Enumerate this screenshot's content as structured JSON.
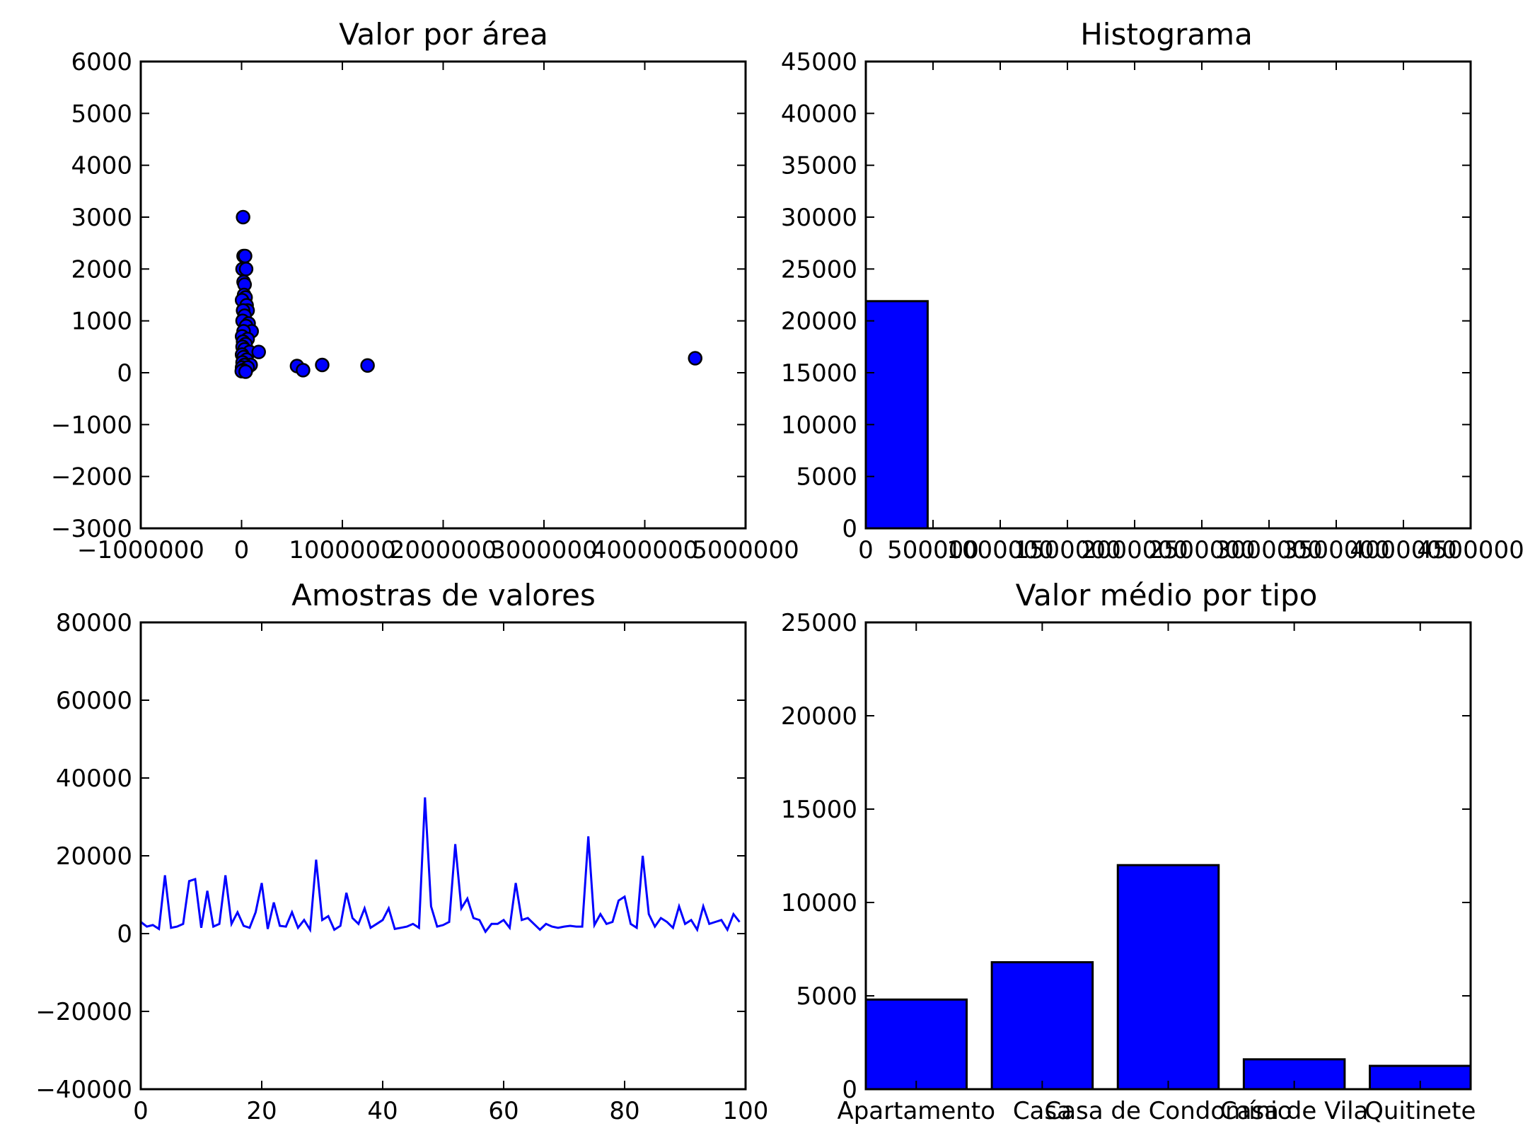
{
  "chart_data": [
    {
      "type": "scatter",
      "title": "Valor por área",
      "xlabel": "",
      "ylabel": "",
      "xlim": [
        -1000000,
        5000000
      ],
      "ylim": [
        -3000,
        6000
      ],
      "xticks": [
        -1000000,
        0,
        1000000,
        2000000,
        3000000,
        4000000,
        5000000
      ],
      "xtick_labels": [
        "−1000000",
        "0",
        "1000000",
        "2000000",
        "3000000",
        "4000000",
        "5000000"
      ],
      "yticks": [
        -3000,
        -2000,
        -1000,
        0,
        1000,
        2000,
        3000,
        4000,
        5000,
        6000
      ],
      "ytick_labels": [
        "−3000",
        "−2000",
        "−1000",
        "0",
        "1000",
        "2000",
        "3000",
        "4000",
        "5000",
        "6000"
      ],
      "color": "#0000ff",
      "grid": false,
      "points": [
        {
          "x": 15000,
          "y": 3000
        },
        {
          "x": 20000,
          "y": 2250
        },
        {
          "x": 35000,
          "y": 2250
        },
        {
          "x": 10000,
          "y": 2000
        },
        {
          "x": 45000,
          "y": 2000
        },
        {
          "x": 20000,
          "y": 1750
        },
        {
          "x": 30000,
          "y": 1700
        },
        {
          "x": 25000,
          "y": 1500
        },
        {
          "x": 40000,
          "y": 1450
        },
        {
          "x": 5000,
          "y": 1400
        },
        {
          "x": 50000,
          "y": 1300
        },
        {
          "x": 60000,
          "y": 1200
        },
        {
          "x": 15000,
          "y": 1200
        },
        {
          "x": 30000,
          "y": 1100
        },
        {
          "x": 10000,
          "y": 1000
        },
        {
          "x": 70000,
          "y": 950
        },
        {
          "x": 45000,
          "y": 900
        },
        {
          "x": 100000,
          "y": 800
        },
        {
          "x": 20000,
          "y": 800
        },
        {
          "x": 5000,
          "y": 700
        },
        {
          "x": 60000,
          "y": 650
        },
        {
          "x": 15000,
          "y": 600
        },
        {
          "x": 40000,
          "y": 550
        },
        {
          "x": 10000,
          "y": 500
        },
        {
          "x": 30000,
          "y": 450
        },
        {
          "x": 80000,
          "y": 400
        },
        {
          "x": 170000,
          "y": 400
        },
        {
          "x": 5000,
          "y": 350
        },
        {
          "x": 20000,
          "y": 300
        },
        {
          "x": 50000,
          "y": 250
        },
        {
          "x": 10000,
          "y": 200
        },
        {
          "x": 90000,
          "y": 150
        },
        {
          "x": 30000,
          "y": 150
        },
        {
          "x": 5000,
          "y": 100
        },
        {
          "x": 60000,
          "y": 100
        },
        {
          "x": 15000,
          "y": 50
        },
        {
          "x": 2000,
          "y": 30
        },
        {
          "x": 40000,
          "y": 20
        },
        {
          "x": 550000,
          "y": 130
        },
        {
          "x": 610000,
          "y": 50
        },
        {
          "x": 800000,
          "y": 150
        },
        {
          "x": 1250000,
          "y": 140
        },
        {
          "x": 4500000,
          "y": 280
        }
      ]
    },
    {
      "type": "bar",
      "title": "Histograma",
      "xlabel": "",
      "ylabel": "",
      "xlim": [
        0,
        4500000
      ],
      "ylim": [
        0,
        45000
      ],
      "xticks": [
        0,
        500000,
        1000000,
        1500000,
        2000000,
        2500000,
        3000000,
        3500000,
        4000000,
        4500000
      ],
      "xtick_labels": [
        "0",
        "500000",
        "1000000",
        "1500000",
        "2000000",
        "2500000",
        "3000000",
        "3500000",
        "4000000",
        "4500000"
      ],
      "yticks": [
        0,
        5000,
        10000,
        15000,
        20000,
        25000,
        30000,
        35000,
        40000,
        45000
      ],
      "ytick_labels": [
        "0",
        "5000",
        "10000",
        "15000",
        "20000",
        "25000",
        "30000",
        "35000",
        "40000",
        "45000"
      ],
      "color": "#0000ff",
      "grid": false,
      "bins": [
        {
          "x0": 0,
          "x1": 460000,
          "count": 21900
        }
      ]
    },
    {
      "type": "line",
      "title": "Amostras de valores",
      "xlabel": "",
      "ylabel": "",
      "xlim": [
        0,
        100
      ],
      "ylim": [
        -40000,
        80000
      ],
      "xticks": [
        0,
        20,
        40,
        60,
        80,
        100
      ],
      "xtick_labels": [
        "0",
        "20",
        "40",
        "60",
        "80",
        "100"
      ],
      "yticks": [
        -40000,
        -20000,
        0,
        20000,
        40000,
        60000,
        80000
      ],
      "ytick_labels": [
        "−40000",
        "−20000",
        "0",
        "20000",
        "40000",
        "60000",
        "80000"
      ],
      "color": "#0000ff",
      "grid": false,
      "values": [
        3000,
        1800,
        2200,
        1200,
        15000,
        1500,
        1800,
        2500,
        13500,
        14000,
        1500,
        11000,
        1800,
        2500,
        15000,
        2500,
        5500,
        2000,
        1500,
        5500,
        13000,
        1200,
        8000,
        2000,
        1800,
        5500,
        1500,
        3500,
        1000,
        19000,
        3500,
        4500,
        1000,
        2000,
        10500,
        4000,
        2500,
        6500,
        1500,
        2500,
        3500,
        6500,
        1200,
        1500,
        1800,
        2500,
        1500,
        35000,
        7000,
        1800,
        2200,
        3000,
        23000,
        6500,
        9000,
        4000,
        3500,
        500,
        2500,
        2500,
        3500,
        1500,
        13000,
        3500,
        4000,
        2500,
        1000,
        2500,
        1800,
        1500,
        1800,
        2000,
        1800,
        1800,
        25000,
        2200,
        5000,
        2500,
        3000,
        8500,
        9500,
        2500,
        1500,
        20000,
        5000,
        1800,
        4000,
        3000,
        1500,
        7000,
        2500,
        3500,
        1000,
        7000,
        2500,
        3000,
        3500,
        1000,
        5000,
        3000
      ]
    },
    {
      "type": "bar",
      "title": "Valor médio por tipo",
      "xlabel": "",
      "ylabel": "",
      "ylim": [
        0,
        25000
      ],
      "yticks": [
        0,
        5000,
        10000,
        15000,
        20000,
        25000
      ],
      "ytick_labels": [
        "0",
        "5000",
        "10000",
        "15000",
        "20000",
        "25000"
      ],
      "categories": [
        "Apartamento",
        "Casa",
        "Casa de Condomínio",
        "Casa de Vila",
        "Quitinete"
      ],
      "values": [
        4800,
        6800,
        12000,
        1600,
        1250
      ],
      "color": "#0000ff",
      "grid": false
    }
  ]
}
